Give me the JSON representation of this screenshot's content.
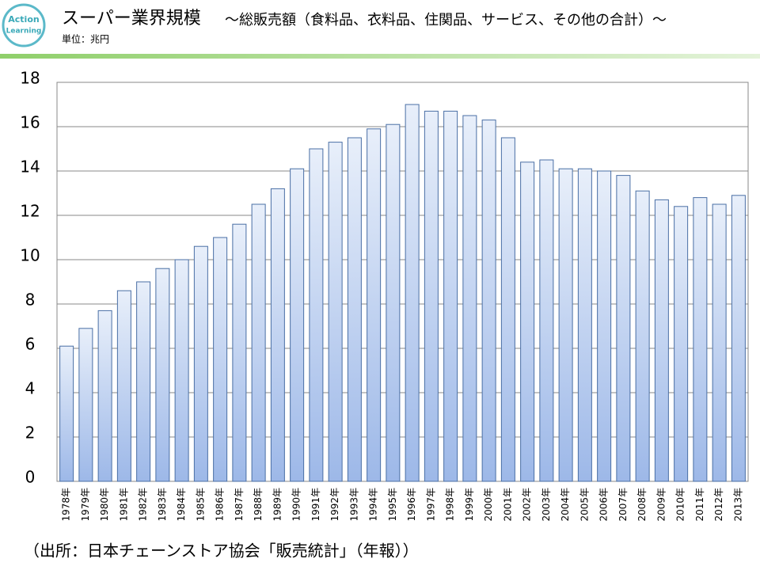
{
  "logo": {
    "line1": "Action",
    "line2": "Learning"
  },
  "chart_data": {
    "type": "bar",
    "title": "スーパー業界規模",
    "subtitle": "～総販売額（食料品、衣料品、住関品、サービス、その他の合計）～",
    "unit": "単位：兆円",
    "source": "（出所：日本チェーンストア協会「販売統計」（年報））",
    "categories": [
      "1978年",
      "1979年",
      "1980年",
      "1981年",
      "1982年",
      "1983年",
      "1984年",
      "1985年",
      "1986年",
      "1987年",
      "1988年",
      "1989年",
      "1990年",
      "1991年",
      "1992年",
      "1993年",
      "1994年",
      "1995年",
      "1996年",
      "1997年",
      "1998年",
      "1999年",
      "2000年",
      "2001年",
      "2002年",
      "2003年",
      "2004年",
      "2005年",
      "2006年",
      "2007年",
      "2008年",
      "2009年",
      "2010年",
      "2011年",
      "2012年",
      "2013年"
    ],
    "values": [
      6.1,
      6.9,
      7.7,
      8.6,
      9.0,
      9.6,
      10.0,
      10.6,
      11.0,
      11.6,
      12.5,
      13.2,
      14.1,
      15.0,
      15.3,
      15.5,
      15.9,
      16.1,
      17.0,
      16.7,
      16.7,
      16.5,
      16.3,
      15.5,
      14.4,
      14.5,
      14.1,
      14.1,
      14.0,
      13.8,
      13.1,
      12.7,
      12.4,
      12.8,
      12.5,
      12.9
    ],
    "color": "#4f81bd",
    "ylim": [
      0,
      18
    ],
    "yticks": [
      0,
      2,
      4,
      6,
      8,
      10,
      12,
      14,
      16,
      18
    ],
    "grid": true
  }
}
